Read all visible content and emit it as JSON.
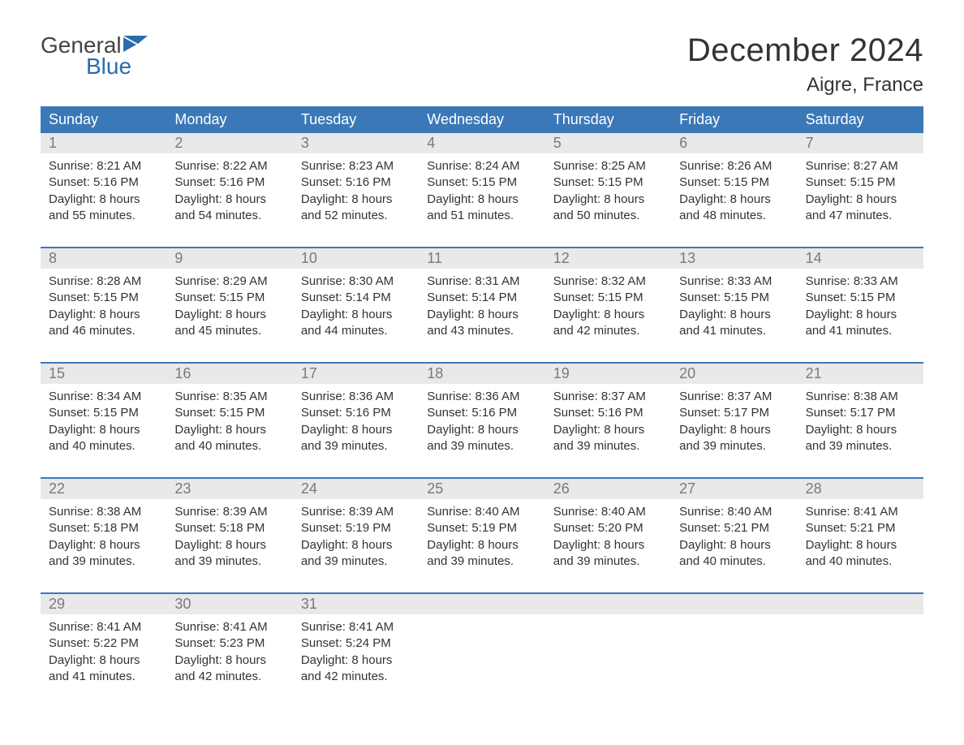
{
  "brand": {
    "general": "General",
    "blue": "Blue"
  },
  "title": "December 2024",
  "location": "Aigre, France",
  "colors": {
    "header_bg": "#3b78b8",
    "header_text": "#ffffff",
    "daynum_bg": "#e9e9e9",
    "daynum_text": "#7a7a7a",
    "body_text": "#333333",
    "brand_blue": "#2a6bb0",
    "week_divider": "#3b78b8",
    "page_bg": "#ffffff"
  },
  "typography": {
    "title_fontsize": 40,
    "location_fontsize": 24,
    "dow_fontsize": 18,
    "daynum_fontsize": 18,
    "body_fontsize": 15,
    "logo_fontsize": 28
  },
  "days_of_week": [
    "Sunday",
    "Monday",
    "Tuesday",
    "Wednesday",
    "Thursday",
    "Friday",
    "Saturday"
  ],
  "weeks": [
    [
      {
        "num": "1",
        "sunrise": "Sunrise: 8:21 AM",
        "sunset": "Sunset: 5:16 PM",
        "dl1": "Daylight: 8 hours",
        "dl2": "and 55 minutes."
      },
      {
        "num": "2",
        "sunrise": "Sunrise: 8:22 AM",
        "sunset": "Sunset: 5:16 PM",
        "dl1": "Daylight: 8 hours",
        "dl2": "and 54 minutes."
      },
      {
        "num": "3",
        "sunrise": "Sunrise: 8:23 AM",
        "sunset": "Sunset: 5:16 PM",
        "dl1": "Daylight: 8 hours",
        "dl2": "and 52 minutes."
      },
      {
        "num": "4",
        "sunrise": "Sunrise: 8:24 AM",
        "sunset": "Sunset: 5:15 PM",
        "dl1": "Daylight: 8 hours",
        "dl2": "and 51 minutes."
      },
      {
        "num": "5",
        "sunrise": "Sunrise: 8:25 AM",
        "sunset": "Sunset: 5:15 PM",
        "dl1": "Daylight: 8 hours",
        "dl2": "and 50 minutes."
      },
      {
        "num": "6",
        "sunrise": "Sunrise: 8:26 AM",
        "sunset": "Sunset: 5:15 PM",
        "dl1": "Daylight: 8 hours",
        "dl2": "and 48 minutes."
      },
      {
        "num": "7",
        "sunrise": "Sunrise: 8:27 AM",
        "sunset": "Sunset: 5:15 PM",
        "dl1": "Daylight: 8 hours",
        "dl2": "and 47 minutes."
      }
    ],
    [
      {
        "num": "8",
        "sunrise": "Sunrise: 8:28 AM",
        "sunset": "Sunset: 5:15 PM",
        "dl1": "Daylight: 8 hours",
        "dl2": "and 46 minutes."
      },
      {
        "num": "9",
        "sunrise": "Sunrise: 8:29 AM",
        "sunset": "Sunset: 5:15 PM",
        "dl1": "Daylight: 8 hours",
        "dl2": "and 45 minutes."
      },
      {
        "num": "10",
        "sunrise": "Sunrise: 8:30 AM",
        "sunset": "Sunset: 5:14 PM",
        "dl1": "Daylight: 8 hours",
        "dl2": "and 44 minutes."
      },
      {
        "num": "11",
        "sunrise": "Sunrise: 8:31 AM",
        "sunset": "Sunset: 5:14 PM",
        "dl1": "Daylight: 8 hours",
        "dl2": "and 43 minutes."
      },
      {
        "num": "12",
        "sunrise": "Sunrise: 8:32 AM",
        "sunset": "Sunset: 5:15 PM",
        "dl1": "Daylight: 8 hours",
        "dl2": "and 42 minutes."
      },
      {
        "num": "13",
        "sunrise": "Sunrise: 8:33 AM",
        "sunset": "Sunset: 5:15 PM",
        "dl1": "Daylight: 8 hours",
        "dl2": "and 41 minutes."
      },
      {
        "num": "14",
        "sunrise": "Sunrise: 8:33 AM",
        "sunset": "Sunset: 5:15 PM",
        "dl1": "Daylight: 8 hours",
        "dl2": "and 41 minutes."
      }
    ],
    [
      {
        "num": "15",
        "sunrise": "Sunrise: 8:34 AM",
        "sunset": "Sunset: 5:15 PM",
        "dl1": "Daylight: 8 hours",
        "dl2": "and 40 minutes."
      },
      {
        "num": "16",
        "sunrise": "Sunrise: 8:35 AM",
        "sunset": "Sunset: 5:15 PM",
        "dl1": "Daylight: 8 hours",
        "dl2": "and 40 minutes."
      },
      {
        "num": "17",
        "sunrise": "Sunrise: 8:36 AM",
        "sunset": "Sunset: 5:16 PM",
        "dl1": "Daylight: 8 hours",
        "dl2": "and 39 minutes."
      },
      {
        "num": "18",
        "sunrise": "Sunrise: 8:36 AM",
        "sunset": "Sunset: 5:16 PM",
        "dl1": "Daylight: 8 hours",
        "dl2": "and 39 minutes."
      },
      {
        "num": "19",
        "sunrise": "Sunrise: 8:37 AM",
        "sunset": "Sunset: 5:16 PM",
        "dl1": "Daylight: 8 hours",
        "dl2": "and 39 minutes."
      },
      {
        "num": "20",
        "sunrise": "Sunrise: 8:37 AM",
        "sunset": "Sunset: 5:17 PM",
        "dl1": "Daylight: 8 hours",
        "dl2": "and 39 minutes."
      },
      {
        "num": "21",
        "sunrise": "Sunrise: 8:38 AM",
        "sunset": "Sunset: 5:17 PM",
        "dl1": "Daylight: 8 hours",
        "dl2": "and 39 minutes."
      }
    ],
    [
      {
        "num": "22",
        "sunrise": "Sunrise: 8:38 AM",
        "sunset": "Sunset: 5:18 PM",
        "dl1": "Daylight: 8 hours",
        "dl2": "and 39 minutes."
      },
      {
        "num": "23",
        "sunrise": "Sunrise: 8:39 AM",
        "sunset": "Sunset: 5:18 PM",
        "dl1": "Daylight: 8 hours",
        "dl2": "and 39 minutes."
      },
      {
        "num": "24",
        "sunrise": "Sunrise: 8:39 AM",
        "sunset": "Sunset: 5:19 PM",
        "dl1": "Daylight: 8 hours",
        "dl2": "and 39 minutes."
      },
      {
        "num": "25",
        "sunrise": "Sunrise: 8:40 AM",
        "sunset": "Sunset: 5:19 PM",
        "dl1": "Daylight: 8 hours",
        "dl2": "and 39 minutes."
      },
      {
        "num": "26",
        "sunrise": "Sunrise: 8:40 AM",
        "sunset": "Sunset: 5:20 PM",
        "dl1": "Daylight: 8 hours",
        "dl2": "and 39 minutes."
      },
      {
        "num": "27",
        "sunrise": "Sunrise: 8:40 AM",
        "sunset": "Sunset: 5:21 PM",
        "dl1": "Daylight: 8 hours",
        "dl2": "and 40 minutes."
      },
      {
        "num": "28",
        "sunrise": "Sunrise: 8:41 AM",
        "sunset": "Sunset: 5:21 PM",
        "dl1": "Daylight: 8 hours",
        "dl2": "and 40 minutes."
      }
    ],
    [
      {
        "num": "29",
        "sunrise": "Sunrise: 8:41 AM",
        "sunset": "Sunset: 5:22 PM",
        "dl1": "Daylight: 8 hours",
        "dl2": "and 41 minutes."
      },
      {
        "num": "30",
        "sunrise": "Sunrise: 8:41 AM",
        "sunset": "Sunset: 5:23 PM",
        "dl1": "Daylight: 8 hours",
        "dl2": "and 42 minutes."
      },
      {
        "num": "31",
        "sunrise": "Sunrise: 8:41 AM",
        "sunset": "Sunset: 5:24 PM",
        "dl1": "Daylight: 8 hours",
        "dl2": "and 42 minutes."
      },
      null,
      null,
      null,
      null
    ]
  ]
}
